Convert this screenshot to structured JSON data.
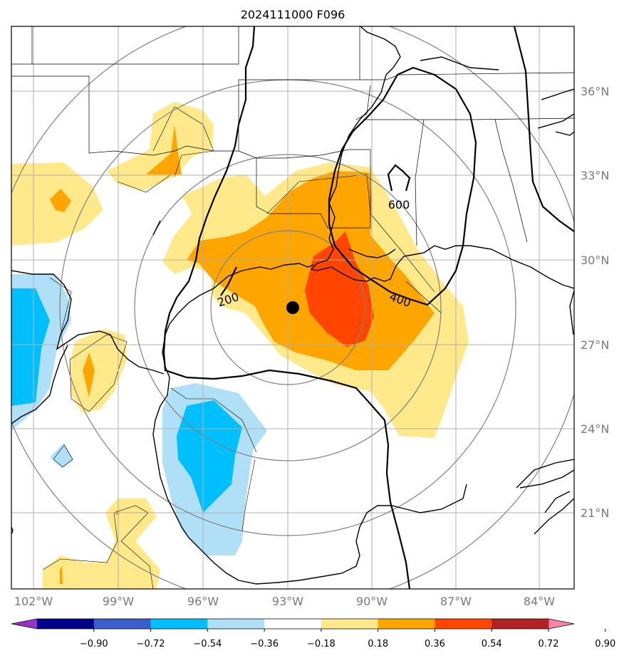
{
  "title": "2024111000 F096",
  "lat_labels": [
    "36°N",
    "33°N",
    "30°N",
    "27°N",
    "24°N",
    "21°N"
  ],
  "lon_labels": [
    "102°W",
    "99°W",
    "96°W",
    "93°W",
    "90°W",
    "87°W",
    "84°W"
  ],
  "colorbar": {
    "ticks": [
      "−0.90",
      "−0.72",
      "−0.54",
      "−0.36",
      "−0.18",
      "0.18",
      "0.36",
      "0.54",
      "0.72",
      "0.90"
    ],
    "colors": [
      "#9932cc",
      "#00008b",
      "#3a5fcd",
      "#00bfff",
      "#b0e0f8",
      "#ffffff",
      "#ffe98a",
      "#ffa500",
      "#ff4500",
      "#b22222",
      "#ff85a8"
    ]
  },
  "contours": {
    "label_200": "200",
    "label_400": "400",
    "label_600": "600"
  },
  "colors": {
    "grid": "#b0b0b0",
    "range_rings": "#808080",
    "coast": "#000000"
  }
}
